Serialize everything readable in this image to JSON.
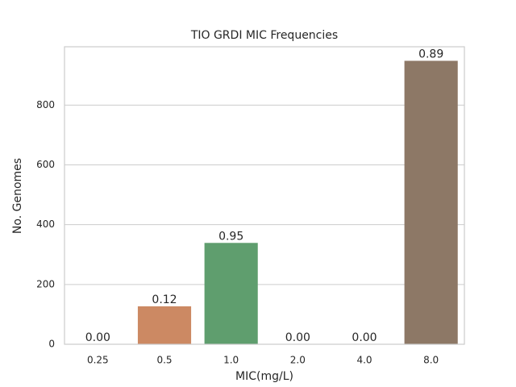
{
  "chart_data": {
    "type": "bar",
    "title": "TIO GRDI MIC Frequencies",
    "x_label": "MIC(mg/L)",
    "y_label": "No. Genomes",
    "categories": [
      "0.25",
      "0.5",
      "1.0",
      "2.0",
      "4.0",
      "8.0"
    ],
    "values": [
      0,
      127,
      339,
      0,
      0,
      948
    ],
    "annotations": [
      "0.00",
      "0.12",
      "0.95",
      "0.00",
      "0.00",
      "0.89"
    ],
    "colors": [
      "#5875a4",
      "#cc8963",
      "#5f9e6e",
      "#b55d60",
      "#857aab",
      "#8d7866"
    ],
    "ylim": [
      0,
      995
    ],
    "yticks": [
      0,
      200,
      400,
      600,
      800
    ],
    "grid": true
  }
}
